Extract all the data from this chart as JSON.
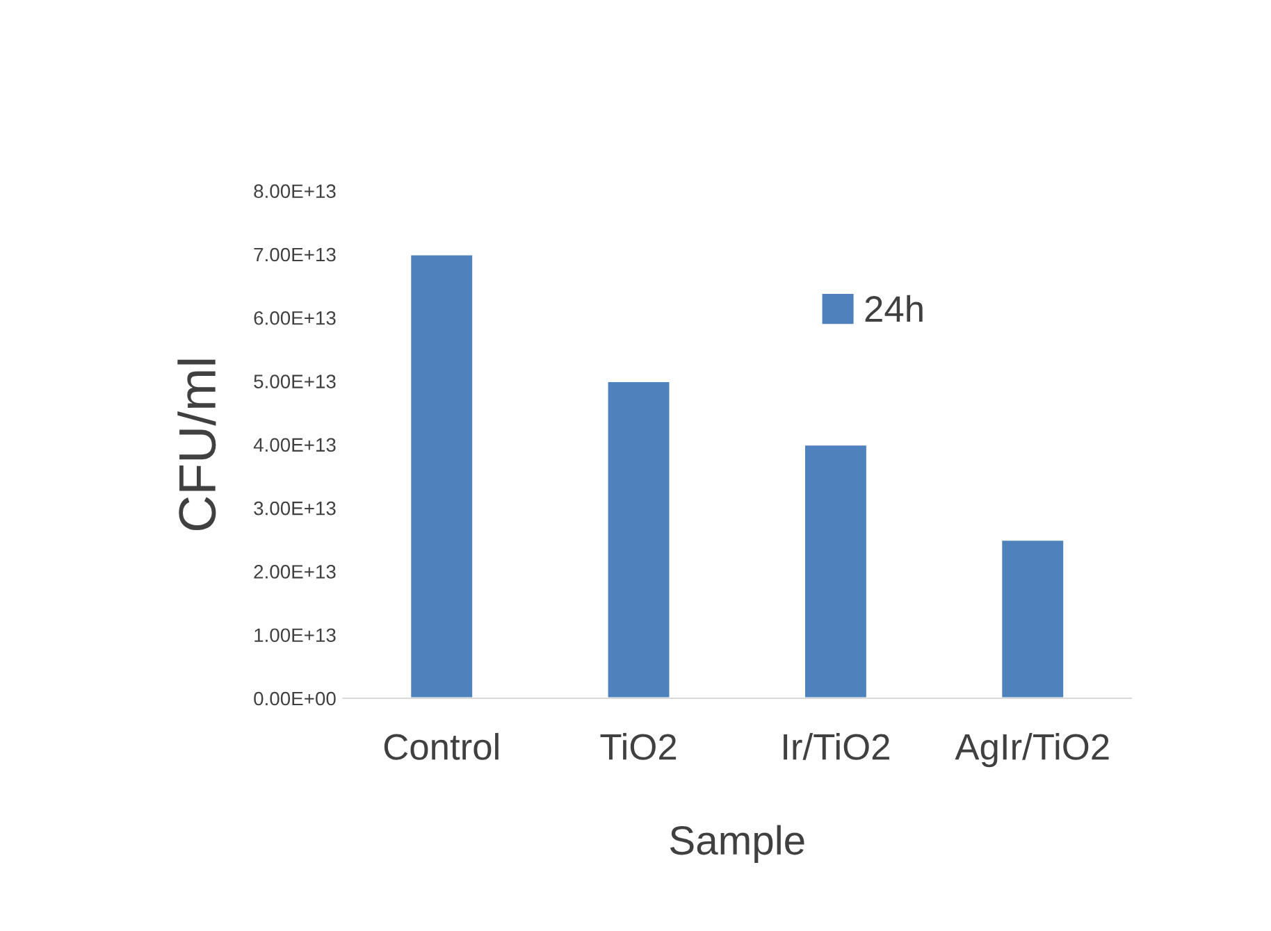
{
  "chart_data": {
    "type": "bar",
    "xlabel": "Sample",
    "ylabel": "CFU/ml",
    "categories": [
      "Control",
      "TiO2",
      "Ir/TiO2",
      "AgIr/TiO2"
    ],
    "series": [
      {
        "name": "24h",
        "color": "#4f81bd",
        "values": [
          70000000000000.0,
          50000000000000.0,
          40000000000000.0,
          25000000000000.0
        ]
      }
    ],
    "ylim": [
      0,
      80000000000000.0
    ],
    "yticks": [
      {
        "value": 0,
        "label": "0.00E+00"
      },
      {
        "value": 10000000000000.0,
        "label": "1.00E+13"
      },
      {
        "value": 20000000000000.0,
        "label": "2.00E+13"
      },
      {
        "value": 30000000000000.0,
        "label": "3.00E+13"
      },
      {
        "value": 40000000000000.0,
        "label": "4.00E+13"
      },
      {
        "value": 50000000000000.0,
        "label": "5.00E+13"
      },
      {
        "value": 60000000000000.0,
        "label": "6.00E+13"
      },
      {
        "value": 70000000000000.0,
        "label": "7.00E+13"
      },
      {
        "value": 80000000000000.0,
        "label": "8.00E+13"
      }
    ],
    "grid": false,
    "legend": "top right"
  }
}
